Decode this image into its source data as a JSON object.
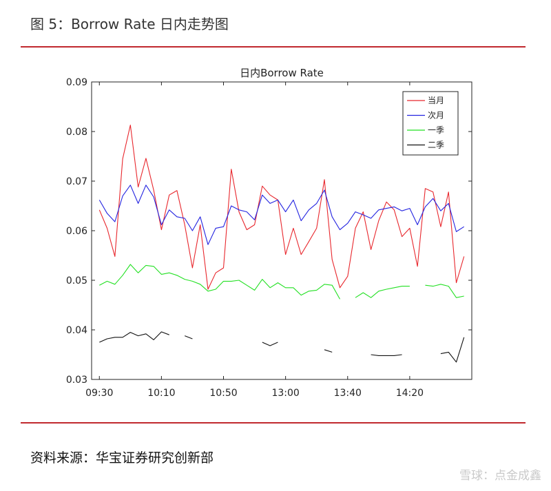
{
  "header": {
    "figure_title": "图 5：Borrow Rate 日内走势图"
  },
  "footer": {
    "source": "资料来源：华宝证券研究创新部",
    "watermark": "雪球：点金成鑫"
  },
  "colors": {
    "rule": "#c0282d",
    "series_1": "#e8262c",
    "series_2": "#2323e0",
    "series_3": "#22e022",
    "series_4": "#111111"
  },
  "chart_data": {
    "type": "line",
    "title": "日内Borrow Rate",
    "xlabel": "",
    "ylabel": "",
    "ylim": [
      0.03,
      0.09
    ],
    "yticks": [
      0.03,
      0.04,
      0.05,
      0.06,
      0.07,
      0.08,
      0.09
    ],
    "ytick_labels": [
      "0.03",
      "0.04",
      "0.05",
      "0.06",
      "0.07",
      "0.08",
      "0.09"
    ],
    "xlim": [
      0,
      47
    ],
    "xticks": [
      0,
      8,
      16,
      24,
      32,
      40
    ],
    "xtick_labels": [
      "09:30",
      "10:10",
      "10:50",
      "13:00",
      "13:40",
      "14:20"
    ],
    "grid": false,
    "legend_position": "top-right",
    "series": [
      {
        "name": "当月",
        "color": "#e8262c",
        "values": [
          0.0642,
          0.0605,
          0.0548,
          0.0745,
          0.0813,
          0.0688,
          0.0746,
          0.0682,
          0.0602,
          0.0672,
          0.0681,
          0.0612,
          0.0525,
          0.0612,
          0.0482,
          0.0515,
          0.0525,
          0.0724,
          0.0638,
          0.0602,
          0.0612,
          0.069,
          0.0672,
          0.0662,
          0.0552,
          0.0605,
          0.0552,
          0.0578,
          0.0605,
          0.0703,
          0.0542,
          0.0485,
          0.0508,
          0.0605,
          0.0638,
          0.0562,
          0.062,
          0.0658,
          0.0642,
          0.0588,
          0.0605,
          0.0528,
          0.0685,
          0.0678,
          0.0608,
          0.0678,
          0.0495,
          0.0548
        ]
      },
      {
        "name": "次月",
        "color": "#2323e0",
        "values": [
          0.0662,
          0.0635,
          0.0618,
          0.067,
          0.0692,
          0.0655,
          0.0692,
          0.0668,
          0.0612,
          0.0642,
          0.0628,
          0.0625,
          0.06,
          0.0628,
          0.0572,
          0.0605,
          0.0608,
          0.065,
          0.0642,
          0.0638,
          0.0622,
          0.0672,
          0.0655,
          0.0662,
          0.0638,
          0.0662,
          0.062,
          0.0642,
          0.0655,
          0.0682,
          0.0628,
          0.0602,
          0.0615,
          0.0638,
          0.0632,
          0.0625,
          0.0642,
          0.0645,
          0.0648,
          0.064,
          0.0645,
          0.0612,
          0.0648,
          0.0665,
          0.064,
          0.0655,
          0.0598,
          0.0608
        ]
      },
      {
        "name": "一季",
        "color": "#22e022",
        "values": [
          0.049,
          0.0498,
          0.0492,
          0.051,
          0.0532,
          0.0515,
          0.053,
          0.0528,
          0.0512,
          0.0515,
          0.051,
          0.0502,
          0.0498,
          0.0492,
          0.0478,
          0.0482,
          0.0498,
          0.0498,
          0.05,
          0.049,
          0.048,
          0.0502,
          0.0485,
          0.0495,
          0.0485,
          0.0485,
          0.047,
          0.0478,
          0.048,
          0.0492,
          0.049,
          0.0462,
          null,
          0.0465,
          0.0475,
          0.0465,
          0.0478,
          0.0482,
          0.0485,
          0.0488,
          0.0488,
          null,
          0.049,
          0.0488,
          0.0492,
          0.0488,
          0.0465,
          0.0468
        ]
      },
      {
        "name": "二季",
        "color": "#111111",
        "values": [
          0.0375,
          0.0382,
          0.0385,
          0.0385,
          0.0395,
          0.0388,
          0.0392,
          0.038,
          0.0396,
          0.039,
          null,
          0.0388,
          0.0382,
          null,
          null,
          null,
          null,
          null,
          null,
          null,
          null,
          0.0375,
          0.0368,
          0.0375,
          null,
          null,
          null,
          null,
          null,
          0.036,
          0.0355,
          null,
          null,
          null,
          null,
          0.035,
          0.0348,
          0.0348,
          0.0348,
          0.035,
          null,
          null,
          null,
          null,
          0.0352,
          0.0355,
          0.0335,
          0.0385
        ]
      }
    ]
  }
}
